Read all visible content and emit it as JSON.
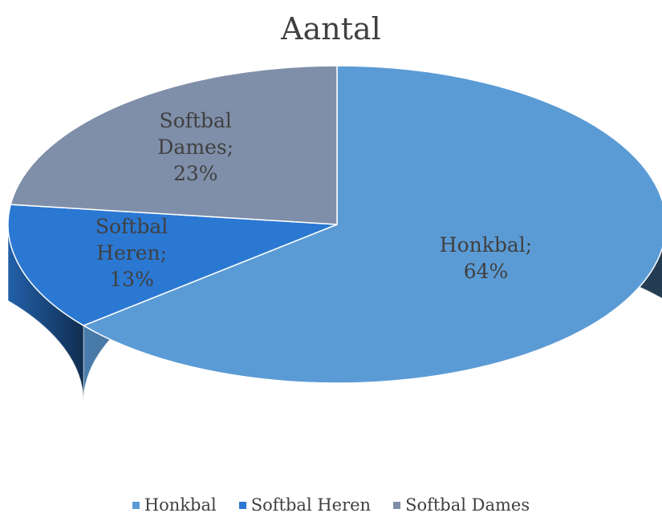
{
  "chart_data": {
    "type": "pie",
    "title": "Aantal",
    "categories": [
      "Honkbal",
      "Softbal Heren",
      "Softbal Dames"
    ],
    "values": [
      64,
      13,
      23
    ],
    "value_labels": [
      "Honkbal; 64%",
      "Softbal Heren; 13%",
      "Softbal Dames; 23%"
    ],
    "colors": [
      "#5b9bd5",
      "#2b78d3",
      "#7f8fa9"
    ],
    "legend": "bottom"
  }
}
